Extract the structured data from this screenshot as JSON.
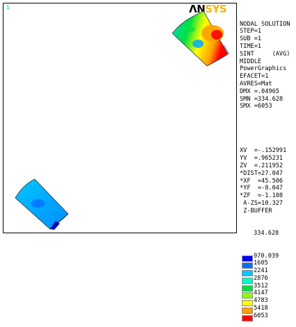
{
  "window_number": "1",
  "logo": {
    "prefix": "ΛΝ",
    "suffix": "SYS",
    "prefix_color": "#000000",
    "suffix_color": "#f5b400"
  },
  "info_lines": [
    "NODAL SOLUTION",
    "STEP=1",
    "SUB =1",
    "TIME=1",
    "SINT     (AVG)",
    "MIDDLE",
    "PowerGraphics",
    "EFACET=1",
    "AVRES=Mat",
    "DMX =.04965",
    "SMN =334.628",
    "SMX =6053"
  ],
  "view_lines": [
    "XV  =-.152991",
    "YV  =.965231",
    "ZV  =.211952",
    "*DIST=27.047",
    "*XF  =45.506",
    "*YF  =-8.047",
    "*ZF  =-1.108",
    " A-ZS=10.327",
    " Z-BUFFER"
  ],
  "legend": {
    "min": "334.628",
    "items": [
      {
        "value": "970.039",
        "color": "#0000ff"
      },
      {
        "value": "1605",
        "color": "#0070ff"
      },
      {
        "value": "2241",
        "color": "#00c8ff"
      },
      {
        "value": "2876",
        "color": "#00ffc8"
      },
      {
        "value": "3512",
        "color": "#00e040"
      },
      {
        "value": "4147",
        "color": "#8cff00"
      },
      {
        "value": "4783",
        "color": "#ffff00"
      },
      {
        "value": "5418",
        "color": "#ffa000"
      },
      {
        "value": "6053",
        "color": "#ff0000"
      }
    ]
  }
}
